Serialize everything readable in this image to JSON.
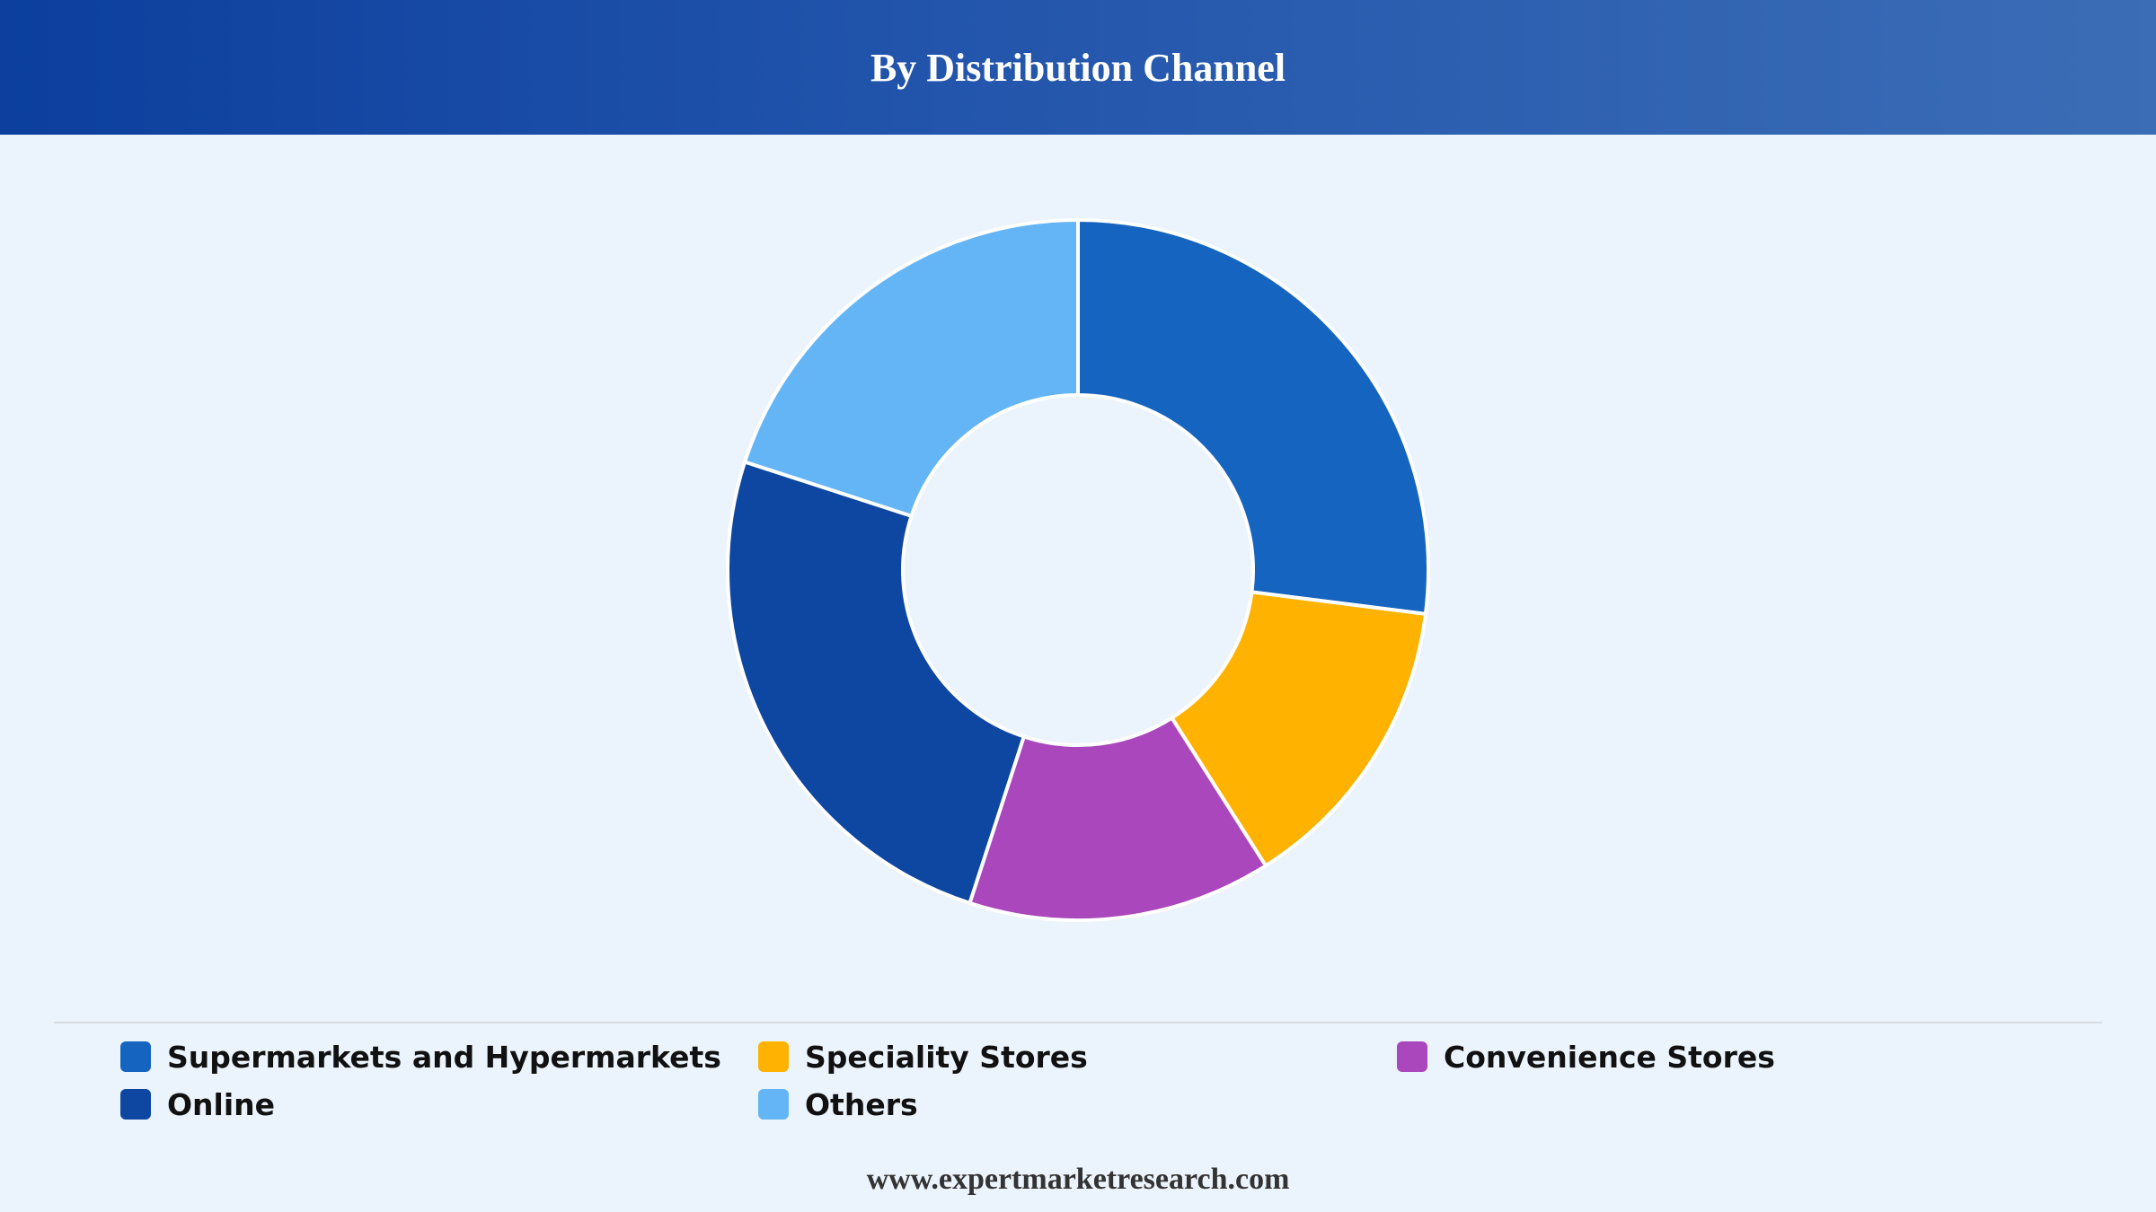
{
  "header": {
    "title": "By Distribution Channel"
  },
  "chart_data": {
    "type": "pie",
    "variant": "donut",
    "title": "By Distribution Channel",
    "categories": [
      "Supermarkets and Hypermarkets",
      "Speciality Stores",
      "Convenience Stores",
      "Online",
      "Others"
    ],
    "values": [
      27,
      14,
      14,
      25,
      20
    ],
    "colors": [
      "#1565c0",
      "#ffb300",
      "#ab47bc",
      "#0d47a1",
      "#64b5f6"
    ],
    "legend_position": "bottom"
  },
  "legend": {
    "items": [
      {
        "label": "Supermarkets and Hypermarkets",
        "color": "#1565c0"
      },
      {
        "label": "Speciality Stores",
        "color": "#ffb300"
      },
      {
        "label": "Convenience Stores",
        "color": "#ab47bc"
      },
      {
        "label": "Online",
        "color": "#0d47a1"
      },
      {
        "label": "Others",
        "color": "#64b5f6"
      }
    ]
  },
  "footer": {
    "text": "www.expertmarketresearch.com"
  }
}
